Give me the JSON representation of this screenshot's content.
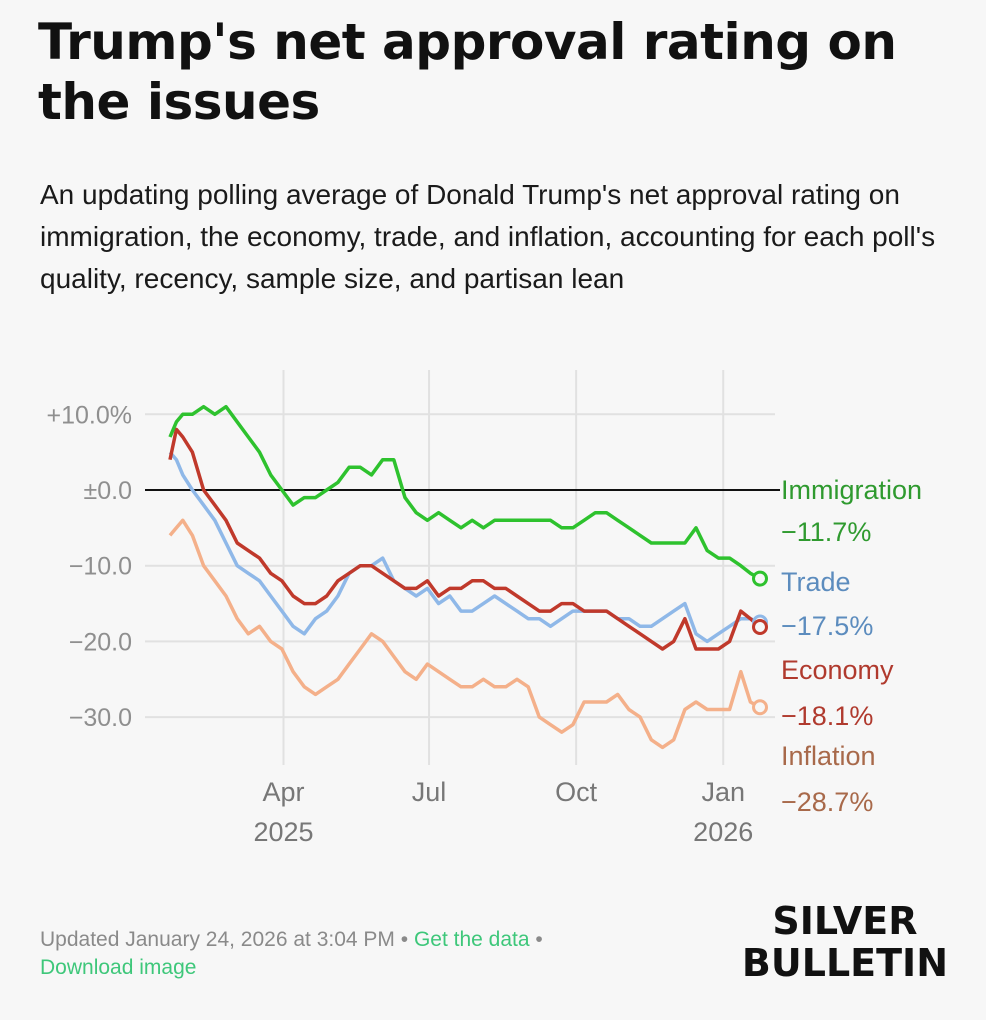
{
  "header": {
    "title": "Trump's net approval rating on the issues",
    "subtitle": "An updating polling average of Donald Trump's net approval rating on immigration, the economy, trade, and inflation, accounting for each poll's quality, recency, sample size, and partisan lean"
  },
  "footer": {
    "updated": "Updated January 24, 2026 at 3:04 PM",
    "get_data": "Get the data",
    "download": "Download image"
  },
  "brand": {
    "line1": "SILVER",
    "line2": "BULLETIN"
  },
  "chart_data": {
    "type": "line",
    "x_axis": {
      "ticks": [
        {
          "date": "2025-04-01",
          "label": "Apr",
          "year": "2025"
        },
        {
          "date": "2025-07-01",
          "label": "Jul",
          "year": ""
        },
        {
          "date": "2025-10-01",
          "label": "Oct",
          "year": ""
        },
        {
          "date": "2026-01-01",
          "label": "Jan",
          "year": "2026"
        }
      ],
      "range": [
        "2025-01-20",
        "2026-01-24"
      ]
    },
    "y_axis": {
      "range": [
        -35,
        12
      ],
      "ticks": [
        10,
        0,
        -10,
        -20,
        -30
      ],
      "tick_labels": [
        "+10.0%",
        "±0.0",
        "−10.0",
        "−20.0",
        "−30.0"
      ]
    },
    "grid": true,
    "zero_line": true,
    "series": [
      {
        "name": "Immigration",
        "end_label": "−11.7%",
        "color": "#2ec22e",
        "text_color": "#2f9a2f",
        "points": [
          [
            "2025-01-20",
            7
          ],
          [
            "2025-01-24",
            9
          ],
          [
            "2025-01-28",
            10
          ],
          [
            "2025-02-03",
            10
          ],
          [
            "2025-02-10",
            11
          ],
          [
            "2025-02-17",
            10
          ],
          [
            "2025-02-24",
            11
          ],
          [
            "2025-03-03",
            9
          ],
          [
            "2025-03-10",
            7
          ],
          [
            "2025-03-17",
            5
          ],
          [
            "2025-03-24",
            2
          ],
          [
            "2025-03-31",
            0
          ],
          [
            "2025-04-07",
            -2
          ],
          [
            "2025-04-14",
            -1
          ],
          [
            "2025-04-21",
            -1
          ],
          [
            "2025-04-28",
            0
          ],
          [
            "2025-05-05",
            1
          ],
          [
            "2025-05-12",
            3
          ],
          [
            "2025-05-19",
            3
          ],
          [
            "2025-05-26",
            2
          ],
          [
            "2025-06-02",
            4
          ],
          [
            "2025-06-09",
            4
          ],
          [
            "2025-06-16",
            -1
          ],
          [
            "2025-06-23",
            -3
          ],
          [
            "2025-06-30",
            -4
          ],
          [
            "2025-07-07",
            -3
          ],
          [
            "2025-07-14",
            -4
          ],
          [
            "2025-07-21",
            -5
          ],
          [
            "2025-07-28",
            -4
          ],
          [
            "2025-08-04",
            -5
          ],
          [
            "2025-08-11",
            -4
          ],
          [
            "2025-08-18",
            -4
          ],
          [
            "2025-08-25",
            -4
          ],
          [
            "2025-09-01",
            -4
          ],
          [
            "2025-09-08",
            -4
          ],
          [
            "2025-09-15",
            -4
          ],
          [
            "2025-09-22",
            -5
          ],
          [
            "2025-09-29",
            -5
          ],
          [
            "2025-10-06",
            -4
          ],
          [
            "2025-10-13",
            -3
          ],
          [
            "2025-10-20",
            -3
          ],
          [
            "2025-10-27",
            -4
          ],
          [
            "2025-11-03",
            -5
          ],
          [
            "2025-11-10",
            -6
          ],
          [
            "2025-11-17",
            -7
          ],
          [
            "2025-11-24",
            -7
          ],
          [
            "2025-12-01",
            -7
          ],
          [
            "2025-12-08",
            -7
          ],
          [
            "2025-12-15",
            -5
          ],
          [
            "2025-12-22",
            -8
          ],
          [
            "2025-12-29",
            -9
          ],
          [
            "2026-01-05",
            -9
          ],
          [
            "2026-01-12",
            -10
          ],
          [
            "2026-01-18",
            -11
          ],
          [
            "2026-01-24",
            -11.7
          ]
        ]
      },
      {
        "name": "Trade",
        "end_label": "−17.5%",
        "color": "#8fb8e8",
        "text_color": "#5c8cbe",
        "points": [
          [
            "2025-01-20",
            5
          ],
          [
            "2025-01-24",
            4
          ],
          [
            "2025-01-28",
            2
          ],
          [
            "2025-02-03",
            0
          ],
          [
            "2025-02-10",
            -2
          ],
          [
            "2025-02-17",
            -4
          ],
          [
            "2025-02-24",
            -7
          ],
          [
            "2025-03-03",
            -10
          ],
          [
            "2025-03-10",
            -11
          ],
          [
            "2025-03-17",
            -12
          ],
          [
            "2025-03-24",
            -14
          ],
          [
            "2025-03-31",
            -16
          ],
          [
            "2025-04-07",
            -18
          ],
          [
            "2025-04-14",
            -19
          ],
          [
            "2025-04-21",
            -17
          ],
          [
            "2025-04-28",
            -16
          ],
          [
            "2025-05-05",
            -14
          ],
          [
            "2025-05-12",
            -11
          ],
          [
            "2025-05-19",
            -10
          ],
          [
            "2025-05-26",
            -10
          ],
          [
            "2025-06-02",
            -9
          ],
          [
            "2025-06-09",
            -12
          ],
          [
            "2025-06-16",
            -13
          ],
          [
            "2025-06-23",
            -14
          ],
          [
            "2025-06-30",
            -13
          ],
          [
            "2025-07-07",
            -15
          ],
          [
            "2025-07-14",
            -14
          ],
          [
            "2025-07-21",
            -16
          ],
          [
            "2025-07-28",
            -16
          ],
          [
            "2025-08-04",
            -15
          ],
          [
            "2025-08-11",
            -14
          ],
          [
            "2025-08-18",
            -15
          ],
          [
            "2025-08-25",
            -16
          ],
          [
            "2025-09-01",
            -17
          ],
          [
            "2025-09-08",
            -17
          ],
          [
            "2025-09-15",
            -18
          ],
          [
            "2025-09-22",
            -17
          ],
          [
            "2025-09-29",
            -16
          ],
          [
            "2025-10-06",
            -16
          ],
          [
            "2025-10-13",
            -16
          ],
          [
            "2025-10-20",
            -16
          ],
          [
            "2025-10-27",
            -17
          ],
          [
            "2025-11-03",
            -17
          ],
          [
            "2025-11-10",
            -18
          ],
          [
            "2025-11-17",
            -18
          ],
          [
            "2025-11-24",
            -17
          ],
          [
            "2025-12-01",
            -16
          ],
          [
            "2025-12-08",
            -15
          ],
          [
            "2025-12-15",
            -19
          ],
          [
            "2025-12-22",
            -20
          ],
          [
            "2025-12-29",
            -19
          ],
          [
            "2026-01-05",
            -18
          ],
          [
            "2026-01-12",
            -17
          ],
          [
            "2026-01-18",
            -17
          ],
          [
            "2026-01-24",
            -17.5
          ]
        ]
      },
      {
        "name": "Economy",
        "end_label": "−18.1%",
        "color": "#c0392b",
        "text_color": "#b03a2e",
        "points": [
          [
            "2025-01-20",
            4
          ],
          [
            "2025-01-24",
            8
          ],
          [
            "2025-01-28",
            7
          ],
          [
            "2025-02-03",
            5
          ],
          [
            "2025-02-10",
            0
          ],
          [
            "2025-02-17",
            -2
          ],
          [
            "2025-02-24",
            -4
          ],
          [
            "2025-03-03",
            -7
          ],
          [
            "2025-03-10",
            -8
          ],
          [
            "2025-03-17",
            -9
          ],
          [
            "2025-03-24",
            -11
          ],
          [
            "2025-03-31",
            -12
          ],
          [
            "2025-04-07",
            -14
          ],
          [
            "2025-04-14",
            -15
          ],
          [
            "2025-04-21",
            -15
          ],
          [
            "2025-04-28",
            -14
          ],
          [
            "2025-05-05",
            -12
          ],
          [
            "2025-05-12",
            -11
          ],
          [
            "2025-05-19",
            -10
          ],
          [
            "2025-05-26",
            -10
          ],
          [
            "2025-06-02",
            -11
          ],
          [
            "2025-06-09",
            -12
          ],
          [
            "2025-06-16",
            -13
          ],
          [
            "2025-06-23",
            -13
          ],
          [
            "2025-06-30",
            -12
          ],
          [
            "2025-07-07",
            -14
          ],
          [
            "2025-07-14",
            -13
          ],
          [
            "2025-07-21",
            -13
          ],
          [
            "2025-07-28",
            -12
          ],
          [
            "2025-08-04",
            -12
          ],
          [
            "2025-08-11",
            -13
          ],
          [
            "2025-08-18",
            -13
          ],
          [
            "2025-08-25",
            -14
          ],
          [
            "2025-09-01",
            -15
          ],
          [
            "2025-09-08",
            -16
          ],
          [
            "2025-09-15",
            -16
          ],
          [
            "2025-09-22",
            -15
          ],
          [
            "2025-09-29",
            -15
          ],
          [
            "2025-10-06",
            -16
          ],
          [
            "2025-10-13",
            -16
          ],
          [
            "2025-10-20",
            -16
          ],
          [
            "2025-10-27",
            -17
          ],
          [
            "2025-11-03",
            -18
          ],
          [
            "2025-11-10",
            -19
          ],
          [
            "2025-11-17",
            -20
          ],
          [
            "2025-11-24",
            -21
          ],
          [
            "2025-12-01",
            -20
          ],
          [
            "2025-12-08",
            -17
          ],
          [
            "2025-12-15",
            -21
          ],
          [
            "2025-12-22",
            -21
          ],
          [
            "2025-12-29",
            -21
          ],
          [
            "2026-01-05",
            -20
          ],
          [
            "2026-01-12",
            -16
          ],
          [
            "2026-01-18",
            -17
          ],
          [
            "2026-01-24",
            -18.1
          ]
        ]
      },
      {
        "name": "Inflation",
        "end_label": "−28.7%",
        "color": "#f4b08a",
        "text_color": "#a8694a",
        "points": [
          [
            "2025-01-20",
            -6
          ],
          [
            "2025-01-24",
            -5
          ],
          [
            "2025-01-28",
            -4
          ],
          [
            "2025-02-03",
            -6
          ],
          [
            "2025-02-10",
            -10
          ],
          [
            "2025-02-17",
            -12
          ],
          [
            "2025-02-24",
            -14
          ],
          [
            "2025-03-03",
            -17
          ],
          [
            "2025-03-10",
            -19
          ],
          [
            "2025-03-17",
            -18
          ],
          [
            "2025-03-24",
            -20
          ],
          [
            "2025-03-31",
            -21
          ],
          [
            "2025-04-07",
            -24
          ],
          [
            "2025-04-14",
            -26
          ],
          [
            "2025-04-21",
            -27
          ],
          [
            "2025-04-28",
            -26
          ],
          [
            "2025-05-05",
            -25
          ],
          [
            "2025-05-12",
            -23
          ],
          [
            "2025-05-19",
            -21
          ],
          [
            "2025-05-26",
            -19
          ],
          [
            "2025-06-02",
            -20
          ],
          [
            "2025-06-09",
            -22
          ],
          [
            "2025-06-16",
            -24
          ],
          [
            "2025-06-23",
            -25
          ],
          [
            "2025-06-30",
            -23
          ],
          [
            "2025-07-07",
            -24
          ],
          [
            "2025-07-14",
            -25
          ],
          [
            "2025-07-21",
            -26
          ],
          [
            "2025-07-28",
            -26
          ],
          [
            "2025-08-04",
            -25
          ],
          [
            "2025-08-11",
            -26
          ],
          [
            "2025-08-18",
            -26
          ],
          [
            "2025-08-25",
            -25
          ],
          [
            "2025-09-01",
            -26
          ],
          [
            "2025-09-08",
            -30
          ],
          [
            "2025-09-15",
            -31
          ],
          [
            "2025-09-22",
            -32
          ],
          [
            "2025-09-29",
            -31
          ],
          [
            "2025-10-06",
            -28
          ],
          [
            "2025-10-13",
            -28
          ],
          [
            "2025-10-20",
            -28
          ],
          [
            "2025-10-27",
            -27
          ],
          [
            "2025-11-03",
            -29
          ],
          [
            "2025-11-10",
            -30
          ],
          [
            "2025-11-17",
            -33
          ],
          [
            "2025-11-24",
            -34
          ],
          [
            "2025-12-01",
            -33
          ],
          [
            "2025-12-08",
            -29
          ],
          [
            "2025-12-15",
            -28
          ],
          [
            "2025-12-22",
            -29
          ],
          [
            "2025-12-29",
            -29
          ],
          [
            "2026-01-05",
            -29
          ],
          [
            "2026-01-12",
            -24
          ],
          [
            "2026-01-18",
            -28
          ],
          [
            "2026-01-24",
            -28.7
          ]
        ]
      }
    ]
  }
}
